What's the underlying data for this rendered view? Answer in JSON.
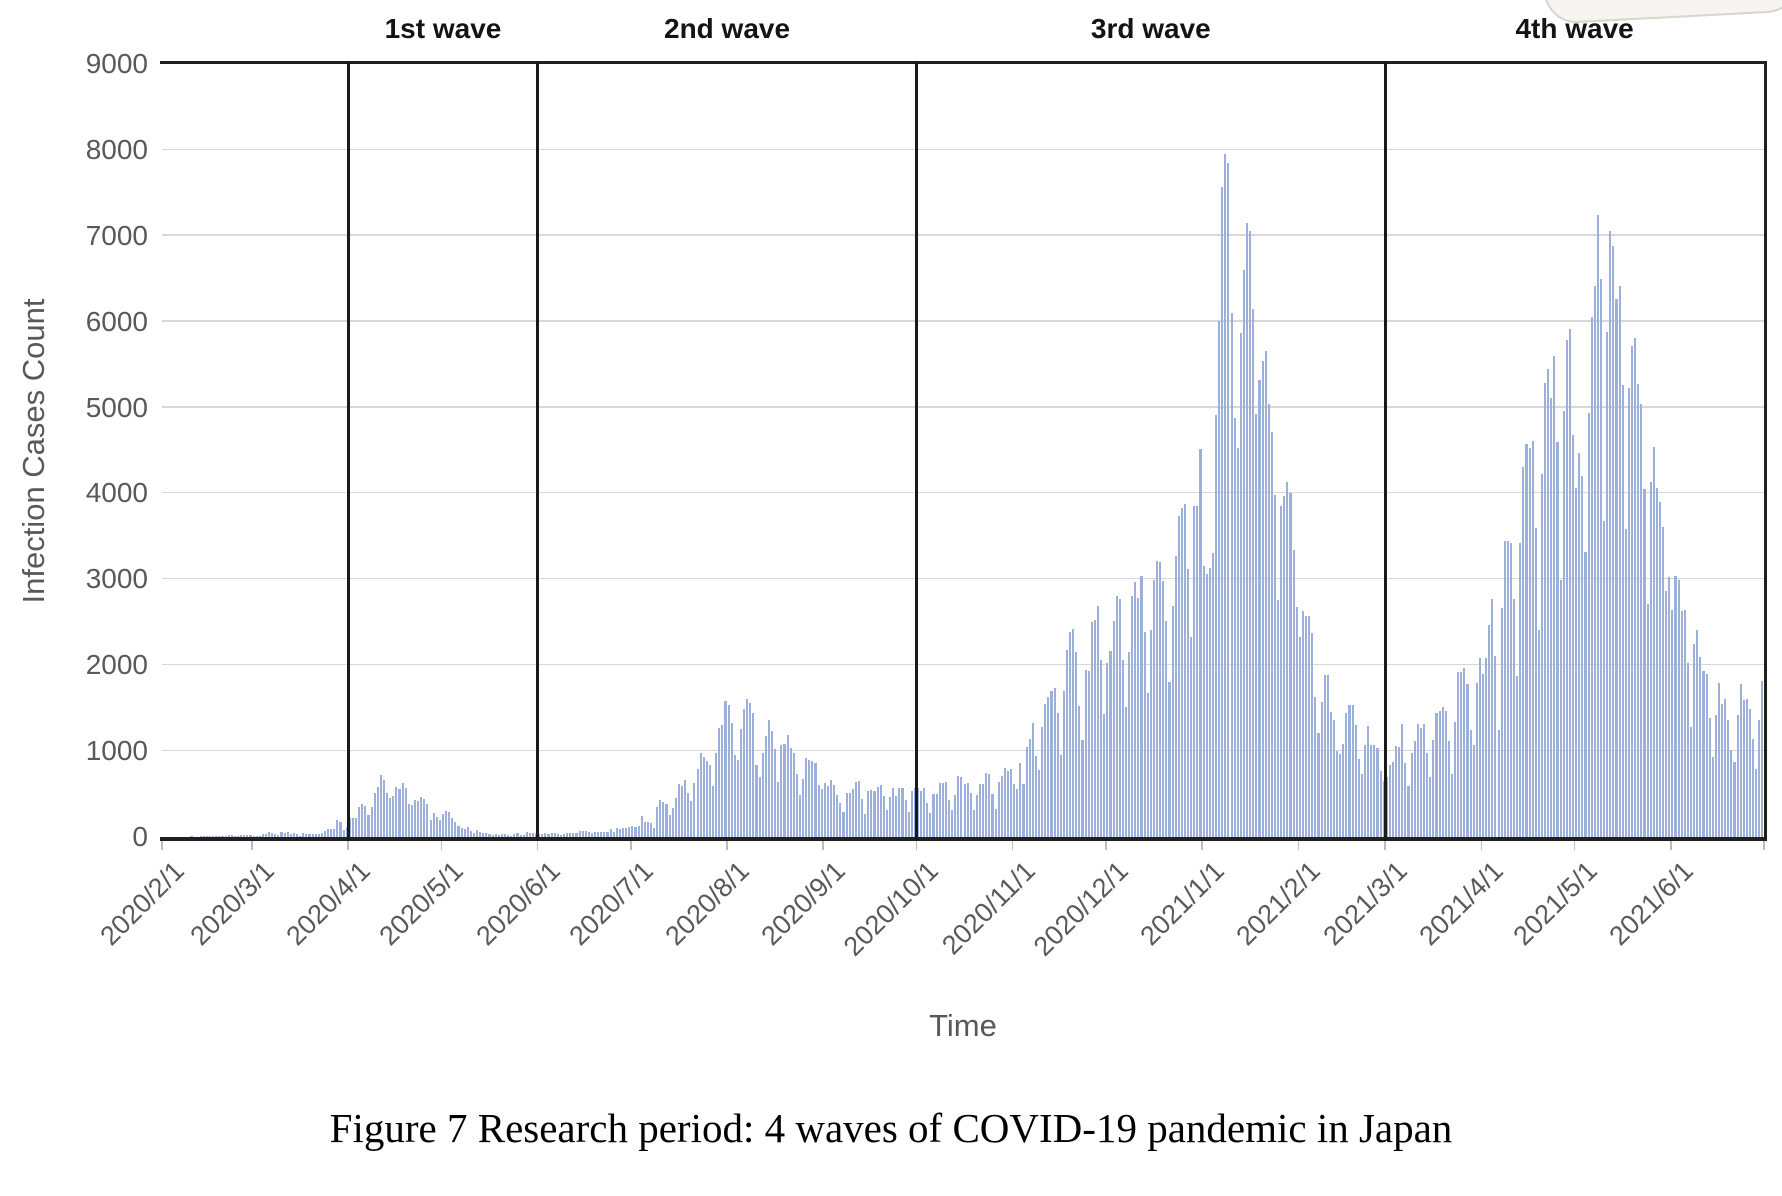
{
  "figure": {
    "caption": "Figure 7 Research period: 4 waves of COVID-19 pandemic in Japan"
  },
  "chart_data": {
    "type": "bar",
    "title": "",
    "xlabel": "Time",
    "ylabel": "Infection Cases Count",
    "ylim": [
      0,
      9000
    ],
    "y_ticks": [
      0,
      1000,
      2000,
      3000,
      4000,
      5000,
      6000,
      7000,
      8000,
      9000
    ],
    "grid": true,
    "legend": "none",
    "bar_color": "#9db0db",
    "x_start_date": "2020-02-01",
    "x_end_date": "2021-07-01",
    "x_tick_labels": [
      "2020/2/1",
      "2020/3/1",
      "2020/4/1",
      "2020/5/1",
      "2020/6/1",
      "2020/7/1",
      "2020/8/1",
      "2020/9/1",
      "2020/10/1",
      "2020/11/1",
      "2020/12/1",
      "2021/1/1",
      "2021/2/1",
      "2021/3/1",
      "2021/4/1",
      "2021/5/1",
      "2021/6/1"
    ],
    "waves": [
      {
        "label": "1st wave",
        "start": "2020-04-01",
        "end": "2020-06-01"
      },
      {
        "label": "2nd wave",
        "start": "2020-06-01",
        "end": "2020-10-01"
      },
      {
        "label": "3rd wave",
        "start": "2020-10-01",
        "end": "2021-03-01"
      },
      {
        "label": "4th wave",
        "start": "2021-03-01",
        "end": "2021-07-01"
      }
    ],
    "daily_values": [
      2,
      1,
      3,
      4,
      2,
      1,
      2,
      5,
      6,
      8,
      4,
      5,
      7,
      8,
      12,
      10,
      13,
      9,
      11,
      14,
      16,
      26,
      19,
      15,
      13,
      22,
      24,
      21,
      24,
      15,
      14,
      16,
      33,
      31,
      59,
      47,
      33,
      26,
      54,
      52,
      55,
      40,
      47,
      33,
      15,
      44,
      40,
      36,
      39,
      34,
      39,
      43,
      65,
      93,
      96,
      96,
      194,
      173,
      87,
      117,
      222,
      226,
      225,
      351,
      383,
      361,
      252,
      351,
      511,
      579,
      719,
      663,
      507,
      455,
      482,
      585,
      556,
      628,
      566,
      390,
      377,
      434,
      423,
      469,
      441,
      390,
      203,
      276,
      236,
      193,
      266,
      304,
      295,
      218,
      176,
      123,
      105,
      91,
      115,
      70,
      45,
      79,
      55,
      49,
      45,
      30,
      27,
      31,
      21,
      31,
      37,
      26,
      14,
      31,
      42,
      21,
      26,
      63,
      49,
      47,
      35,
      35,
      37,
      47,
      31,
      47,
      46,
      38,
      21,
      38,
      41,
      44,
      46,
      47,
      75,
      74,
      72,
      55,
      49,
      56,
      60,
      57,
      56,
      58,
      96,
      56,
      105,
      92,
      110,
      110,
      119,
      127,
      121,
      124,
      250,
      176,
      179,
      159,
      106,
      355,
      430,
      407,
      386,
      259,
      333,
      450,
      622,
      596,
      663,
      511,
      418,
      632,
      795,
      981,
      927,
      885,
      839,
      595,
      981,
      1264,
      1305,
      1580,
      1540,
      1331,
      959,
      898,
      1255,
      1485,
      1605,
      1565,
      1443,
      839,
      695,
      980,
      1177,
      1359,
      1232,
      1021,
      645,
      1075,
      1083,
      1186,
      1034,
      982,
      736,
      489,
      679,
      919,
      898,
      884,
      867,
      601,
      555,
      632,
      598,
      669,
      608,
      486,
      395,
      291,
      508,
      510,
      558,
      636,
      650,
      439,
      270,
      532,
      551,
      534,
      585,
      601,
      480,
      311,
      471,
      571,
      474,
      575,
      572,
      432,
      292,
      534,
      574,
      575,
      540,
      574,
      401,
      281,
      497,
      503,
      626,
      624,
      645,
      436,
      320,
      491,
      708,
      704,
      621,
      624,
      508,
      318,
      484,
      617,
      612,
      746,
      732,
      496,
      331,
      644,
      713,
      809,
      770,
      792,
      614,
      554,
      867,
      620,
      1050,
      1141,
      1331,
      939,
      782,
      1284,
      1547,
      1634,
      1705,
      1737,
      1440,
      950,
      1698,
      2179,
      2385,
      2427,
      2159,
      1520,
      1127,
      1944,
      1930,
      2504,
      2525,
      2684,
      2066,
      1438,
      2030,
      2166,
      2518,
      2808,
      2768,
      2058,
      1516,
      2152,
      2811,
      2971,
      2785,
      3039,
      2391,
      1675,
      2410,
      2987,
      3211,
      3206,
      2982,
      2510,
      1805,
      2690,
      3269,
      3742,
      3832,
      3881,
      3120,
      2329,
      3852,
      3856,
      4515,
      3150,
      3058,
      3127,
      3302,
      4915,
      6004,
      7570,
      7950,
      7850,
      6096,
      4876,
      4527,
      5870,
      6605,
      7150,
      7050,
      6148,
      4925,
      5320,
      5546,
      5663,
      5045,
      4717,
      3985,
      2764,
      3853,
      3971,
      4133,
      4011,
      3344,
      2673,
      2324,
      2631,
      2576,
      2577,
      2372,
      1632,
      1216,
      1568,
      1887,
      1891,
      1457,
      1362,
      999,
      965,
      1084,
      1443,
      1536,
      1538,
      1301,
      914,
      731,
      1076,
      1288,
      1076,
      1073,
      1032,
      769,
      651,
      697,
      835,
      869,
      1063,
      1048,
      1316,
      866,
      599,
      974,
      1121,
      1316,
      1271,
      1319,
      984,
      695,
      1133,
      1448,
      1463,
      1509,
      1467,
      1121,
      734,
      1343,
      1917,
      1921,
      1972,
      1785,
      1249,
      1072,
      1791,
      2087,
      1897,
      2087,
      2472,
      2774,
      2105,
      1242,
      2663,
      3451,
      3442,
      3429,
      2774,
      1871,
      3423,
      4309,
      4578,
      4534,
      4606,
      3602,
      2411,
      4228,
      5291,
      5452,
      5113,
      5605,
      4596,
      2989,
      4964,
      5792,
      5918,
      4684,
      4058,
      4470,
      4199,
      3321,
      4933,
      6057,
      6412,
      7244,
      6493,
      3680,
      5883,
      7057,
      6881,
      6260,
      6421,
      5261,
      3583,
      5230,
      5721,
      5815,
      5270,
      5040,
      4048,
      2714,
      4134,
      4536,
      4064,
      3903,
      3604,
      2860,
      3024,
      2644,
      3036,
      2994,
      2634,
      2645,
      2021,
      1278,
      2242,
      2413,
      2092,
      1937,
      1902,
      1387,
      937,
      1420,
      1789,
      1554,
      1605,
      1367,
      1011,
      868,
      1417,
      1779,
      1595,
      1604,
      1491,
      1139,
      788,
      1358,
      1818
    ]
  }
}
